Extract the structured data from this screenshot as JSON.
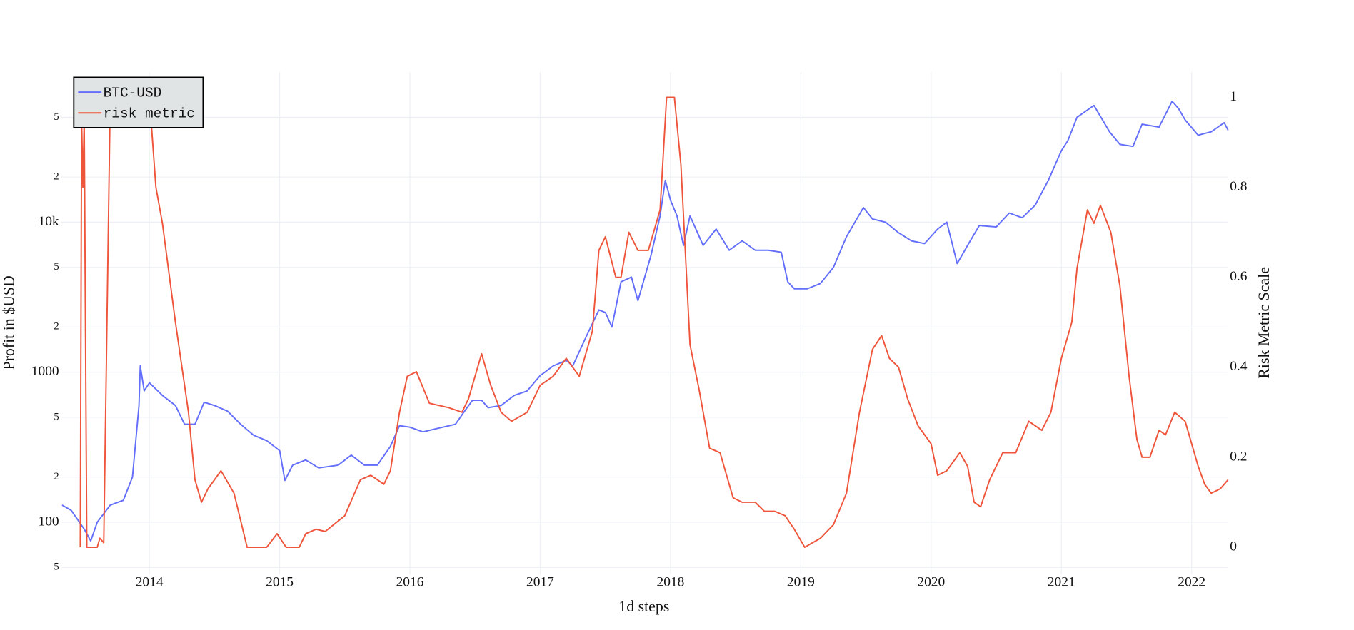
{
  "chart_data": {
    "type": "line",
    "x_label": "1d steps",
    "y_label": "Profit in $USD",
    "y2_label": "Risk Metric Scale",
    "log_y": true,
    "grid": true,
    "legend": "top-left",
    "xlim": [
      2013.32,
      2022.28
    ],
    "xticks": [
      2014,
      2015,
      2016,
      2017,
      2018,
      2019,
      2020,
      2021,
      2022
    ],
    "ylim": [
      45,
      100000
    ],
    "yticks": [
      {
        "value": 50,
        "label": "5"
      },
      100,
      {
        "value": 200,
        "label": "2"
      },
      {
        "value": 500,
        "label": "5"
      },
      1000,
      {
        "value": 2000,
        "label": "2"
      },
      {
        "value": 5000,
        "label": "5"
      },
      {
        "value": 10000,
        "label": "10k"
      },
      {
        "value": 20000,
        "label": "2"
      },
      {
        "value": 50000,
        "label": "5"
      }
    ],
    "y2lim": [
      -0.06,
      1.056
    ],
    "y2ticks": [
      0,
      0.2,
      0.4,
      0.6,
      0.8,
      1
    ],
    "series": [
      {
        "name": "BTC-USD",
        "color": "#636efa",
        "x": [
          2013.33,
          2013.4,
          2013.5,
          2013.55,
          2013.6,
          2013.7,
          2013.8,
          2013.87,
          2013.92,
          2013.93,
          2013.96,
          2014.0,
          2014.1,
          2014.2,
          2014.27,
          2014.35,
          2014.42,
          2014.5,
          2014.6,
          2014.7,
          2014.8,
          2014.9,
          2015.0,
          2015.04,
          2015.1,
          2015.2,
          2015.3,
          2015.45,
          2015.55,
          2015.65,
          2015.75,
          2015.85,
          2015.92,
          2016.0,
          2016.1,
          2016.2,
          2016.35,
          2016.42,
          2016.48,
          2016.55,
          2016.6,
          2016.7,
          2016.8,
          2016.9,
          2017.0,
          2017.1,
          2017.2,
          2017.25,
          2017.35,
          2017.45,
          2017.5,
          2017.55,
          2017.62,
          2017.7,
          2017.75,
          2017.85,
          2017.92,
          2017.96,
          2018.0,
          2018.05,
          2018.1,
          2018.15,
          2018.25,
          2018.35,
          2018.45,
          2018.55,
          2018.65,
          2018.75,
          2018.85,
          2018.9,
          2018.95,
          2019.05,
          2019.15,
          2019.25,
          2019.35,
          2019.48,
          2019.55,
          2019.65,
          2019.75,
          2019.85,
          2019.95,
          2020.05,
          2020.12,
          2020.2,
          2020.3,
          2020.37,
          2020.5,
          2020.6,
          2020.7,
          2020.8,
          2020.9,
          2021.0,
          2021.05,
          2021.12,
          2021.25,
          2021.37,
          2021.45,
          2021.55,
          2021.62,
          2021.75,
          2021.85,
          2021.9,
          2021.95,
          2022.05,
          2022.15,
          2022.25,
          2022.28
        ],
        "values": [
          130,
          120,
          90,
          75,
          100,
          130,
          140,
          200,
          600,
          1100,
          750,
          850,
          700,
          600,
          450,
          450,
          630,
          600,
          550,
          450,
          380,
          350,
          300,
          190,
          240,
          260,
          230,
          240,
          280,
          240,
          240,
          320,
          440,
          430,
          400,
          420,
          450,
          550,
          650,
          650,
          580,
          600,
          700,
          750,
          950,
          1100,
          1200,
          1100,
          1700,
          2600,
          2500,
          2000,
          4000,
          4300,
          3000,
          6000,
          11000,
          19000,
          14000,
          11000,
          7000,
          11000,
          7000,
          9000,
          6500,
          7500,
          6500,
          6500,
          6300,
          4000,
          3600,
          3600,
          3900,
          5000,
          8000,
          12500,
          10500,
          10000,
          8500,
          7500,
          7200,
          9000,
          10000,
          5300,
          7500,
          9500,
          9300,
          11500,
          10700,
          13000,
          19000,
          30000,
          35000,
          50000,
          60000,
          40000,
          33000,
          32000,
          45000,
          43000,
          64000,
          57000,
          48000,
          38000,
          40000,
          46000,
          41000
        ]
      },
      {
        "name": "risk metric",
        "color": "#ef553b",
        "axis": "y2",
        "x": [
          2013.47,
          2013.48,
          2013.49,
          2013.5,
          2013.52,
          2013.6,
          2013.62,
          2013.65,
          2013.7,
          2013.75,
          2014.0,
          2014.05,
          2014.1,
          2014.2,
          2014.3,
          2014.35,
          2014.4,
          2014.45,
          2014.55,
          2014.65,
          2014.75,
          2014.9,
          2014.98,
          2015.05,
          2015.15,
          2015.2,
          2015.28,
          2015.35,
          2015.5,
          2015.62,
          2015.7,
          2015.8,
          2015.85,
          2015.92,
          2015.98,
          2016.05,
          2016.15,
          2016.3,
          2016.4,
          2016.45,
          2016.55,
          2016.62,
          2016.7,
          2016.78,
          2016.9,
          2017.0,
          2017.1,
          2017.2,
          2017.3,
          2017.4,
          2017.45,
          2017.5,
          2017.58,
          2017.62,
          2017.68,
          2017.75,
          2017.83,
          2017.92,
          2017.97,
          2018.03,
          2018.08,
          2018.15,
          2018.22,
          2018.3,
          2018.38,
          2018.48,
          2018.55,
          2018.65,
          2018.72,
          2018.8,
          2018.88,
          2018.95,
          2019.03,
          2019.15,
          2019.25,
          2019.35,
          2019.45,
          2019.55,
          2019.62,
          2019.68,
          2019.75,
          2019.82,
          2019.9,
          2020.0,
          2020.05,
          2020.12,
          2020.22,
          2020.28,
          2020.33,
          2020.38,
          2020.45,
          2020.55,
          2020.65,
          2020.75,
          2020.85,
          2020.92,
          2021.0,
          2021.08,
          2021.12,
          2021.2,
          2021.25,
          2021.3,
          2021.38,
          2021.45,
          2021.52,
          2021.58,
          2021.62,
          2021.68,
          2021.75,
          2021.8,
          2021.87,
          2021.95,
          2022.05,
          2022.1,
          2022.15,
          2022.22,
          2022.28
        ],
        "values": [
          0,
          0.95,
          0.8,
          0.95,
          0,
          0,
          0.02,
          0.01,
          1.0,
          1.0,
          1.0,
          0.8,
          0.72,
          0.5,
          0.3,
          0.15,
          0.1,
          0.13,
          0.17,
          0.12,
          0,
          0,
          0.03,
          0,
          0,
          0.03,
          0.04,
          0.035,
          0.07,
          0.15,
          0.16,
          0.14,
          0.17,
          0.3,
          0.38,
          0.39,
          0.32,
          0.31,
          0.3,
          0.33,
          0.43,
          0.36,
          0.3,
          0.28,
          0.3,
          0.36,
          0.38,
          0.42,
          0.38,
          0.48,
          0.66,
          0.69,
          0.6,
          0.6,
          0.7,
          0.66,
          0.66,
          0.75,
          1.0,
          1.0,
          0.85,
          0.45,
          0.35,
          0.22,
          0.21,
          0.11,
          0.1,
          0.1,
          0.08,
          0.08,
          0.07,
          0.04,
          0,
          0.02,
          0.05,
          0.12,
          0.3,
          0.44,
          0.47,
          0.42,
          0.4,
          0.33,
          0.27,
          0.23,
          0.16,
          0.17,
          0.21,
          0.18,
          0.1,
          0.09,
          0.15,
          0.21,
          0.21,
          0.28,
          0.26,
          0.3,
          0.42,
          0.5,
          0.62,
          0.75,
          0.72,
          0.76,
          0.7,
          0.58,
          0.38,
          0.24,
          0.2,
          0.2,
          0.26,
          0.25,
          0.3,
          0.28,
          0.18,
          0.14,
          0.12,
          0.13,
          0.15
        ]
      }
    ]
  }
}
